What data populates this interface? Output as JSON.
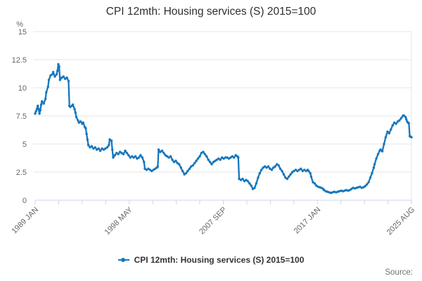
{
  "page": {
    "source_label": "Source:"
  },
  "colors": {
    "background": "#ffffff",
    "grid": "#e6e6e6",
    "axis": "#ccd6eb",
    "tick_label": "#666666",
    "title": "#2f2f2f",
    "legend_text": "#333333",
    "source_text": "#707070",
    "series_blue": "#1677bd"
  },
  "chart_data": {
    "type": "line",
    "title": "CPI 12mth: Housing services (S) 2015=100",
    "xlabel": "",
    "ylabel": "%",
    "ylim": [
      0,
      15
    ],
    "yticks": [
      0,
      2.5,
      5,
      7.5,
      10,
      12.5,
      15
    ],
    "xticks": [
      "1989 JAN",
      "1998 MAY",
      "2007 SEP",
      "2017 JAN",
      "2025 AUG"
    ],
    "xtick_months": [
      0,
      112,
      224,
      336,
      439
    ],
    "minor_xticks_per_interval": 3,
    "grid": "horizontal",
    "legend_position": "bottom",
    "x_unit": "months since 1989 JAN (monthly series, values estimated from plot)",
    "series": [
      {
        "name": "CPI 12mth: Housing services (S) 2015=100",
        "color": "#1677bd",
        "points": [
          [
            0,
            7.7
          ],
          [
            1,
            7.9
          ],
          [
            2,
            8.1
          ],
          [
            3,
            8.4
          ],
          [
            4,
            8.1
          ],
          [
            5,
            7.7
          ],
          [
            6,
            8.0
          ],
          [
            7,
            8.5
          ],
          [
            8,
            8.8
          ],
          [
            10,
            8.6
          ],
          [
            12,
            9.0
          ],
          [
            13,
            9.6
          ],
          [
            15,
            10.1
          ],
          [
            16,
            10.7
          ],
          [
            18,
            11.1
          ],
          [
            20,
            11.2
          ],
          [
            21,
            11.4
          ],
          [
            23,
            11.0
          ],
          [
            25,
            11.2
          ],
          [
            26,
            11.5
          ],
          [
            27,
            12.1
          ],
          [
            28,
            11.9
          ],
          [
            29,
            10.7
          ],
          [
            31,
            10.9
          ],
          [
            33,
            11.0
          ],
          [
            35,
            10.8
          ],
          [
            37,
            10.9
          ],
          [
            39,
            10.6
          ],
          [
            40,
            8.4
          ],
          [
            41,
            8.3
          ],
          [
            43,
            8.4
          ],
          [
            44,
            8.5
          ],
          [
            46,
            8.1
          ],
          [
            47,
            7.8
          ],
          [
            48,
            7.4
          ],
          [
            50,
            7.1
          ],
          [
            51,
            6.9
          ],
          [
            53,
            7.0
          ],
          [
            55,
            6.8
          ],
          [
            56,
            6.9
          ],
          [
            58,
            6.5
          ],
          [
            59,
            6.4
          ],
          [
            60,
            5.9
          ],
          [
            61,
            5.4
          ],
          [
            62,
            4.9
          ],
          [
            64,
            4.7
          ],
          [
            66,
            4.8
          ],
          [
            68,
            4.6
          ],
          [
            70,
            4.7
          ],
          [
            72,
            4.5
          ],
          [
            74,
            4.6
          ],
          [
            76,
            4.4
          ],
          [
            78,
            4.6
          ],
          [
            80,
            4.5
          ],
          [
            82,
            4.6
          ],
          [
            84,
            4.7
          ],
          [
            86,
            4.9
          ],
          [
            87,
            5.4
          ],
          [
            89,
            5.3
          ],
          [
            90,
            4.5
          ],
          [
            91,
            3.8
          ],
          [
            93,
            4.0
          ],
          [
            95,
            4.2
          ],
          [
            97,
            4.1
          ],
          [
            99,
            4.3
          ],
          [
            101,
            4.2
          ],
          [
            103,
            4.1
          ],
          [
            105,
            4.4
          ],
          [
            107,
            4.2
          ],
          [
            109,
            4.0
          ],
          [
            111,
            3.8
          ],
          [
            113,
            3.9
          ],
          [
            115,
            3.8
          ],
          [
            117,
            3.9
          ],
          [
            119,
            3.7
          ],
          [
            121,
            3.8
          ],
          [
            123,
            4.0
          ],
          [
            125,
            3.8
          ],
          [
            127,
            3.4
          ],
          [
            128,
            2.8
          ],
          [
            130,
            2.7
          ],
          [
            132,
            2.8
          ],
          [
            134,
            2.7
          ],
          [
            136,
            2.6
          ],
          [
            138,
            2.7
          ],
          [
            140,
            2.8
          ],
          [
            142,
            2.9
          ],
          [
            143,
            3.0
          ],
          [
            144,
            4.5
          ],
          [
            146,
            4.3
          ],
          [
            148,
            4.4
          ],
          [
            150,
            4.2
          ],
          [
            152,
            4.0
          ],
          [
            154,
            3.9
          ],
          [
            156,
            3.8
          ],
          [
            158,
            3.9
          ],
          [
            160,
            3.6
          ],
          [
            162,
            3.4
          ],
          [
            164,
            3.5
          ],
          [
            166,
            3.3
          ],
          [
            168,
            3.2
          ],
          [
            170,
            2.9
          ],
          [
            172,
            2.6
          ],
          [
            174,
            2.3
          ],
          [
            176,
            2.4
          ],
          [
            178,
            2.6
          ],
          [
            180,
            2.8
          ],
          [
            182,
            3.0
          ],
          [
            184,
            3.1
          ],
          [
            186,
            3.3
          ],
          [
            188,
            3.5
          ],
          [
            190,
            3.7
          ],
          [
            192,
            3.9
          ],
          [
            194,
            4.2
          ],
          [
            196,
            4.3
          ],
          [
            198,
            4.1
          ],
          [
            200,
            3.9
          ],
          [
            202,
            3.6
          ],
          [
            204,
            3.4
          ],
          [
            206,
            3.2
          ],
          [
            208,
            3.4
          ],
          [
            210,
            3.5
          ],
          [
            212,
            3.6
          ],
          [
            214,
            3.7
          ],
          [
            216,
            3.6
          ],
          [
            218,
            3.8
          ],
          [
            220,
            3.7
          ],
          [
            222,
            3.8
          ],
          [
            224,
            3.8
          ],
          [
            226,
            3.7
          ],
          [
            228,
            3.8
          ],
          [
            230,
            3.9
          ],
          [
            232,
            3.8
          ],
          [
            234,
            4.0
          ],
          [
            236,
            3.9
          ],
          [
            237,
            3.8
          ],
          [
            238,
            1.9
          ],
          [
            240,
            1.8
          ],
          [
            242,
            1.9
          ],
          [
            244,
            1.7
          ],
          [
            246,
            1.8
          ],
          [
            248,
            1.7
          ],
          [
            250,
            1.5
          ],
          [
            252,
            1.3
          ],
          [
            254,
            1.0
          ],
          [
            256,
            1.1
          ],
          [
            258,
            1.5
          ],
          [
            260,
            2.0
          ],
          [
            262,
            2.4
          ],
          [
            264,
            2.7
          ],
          [
            266,
            2.9
          ],
          [
            268,
            3.0
          ],
          [
            270,
            2.9
          ],
          [
            272,
            3.0
          ],
          [
            274,
            2.8
          ],
          [
            276,
            2.7
          ],
          [
            278,
            2.9
          ],
          [
            280,
            3.0
          ],
          [
            282,
            3.2
          ],
          [
            284,
            3.1
          ],
          [
            286,
            2.8
          ],
          [
            288,
            2.6
          ],
          [
            290,
            2.3
          ],
          [
            292,
            2.0
          ],
          [
            294,
            1.9
          ],
          [
            296,
            2.1
          ],
          [
            298,
            2.3
          ],
          [
            300,
            2.5
          ],
          [
            302,
            2.6
          ],
          [
            304,
            2.7
          ],
          [
            306,
            2.6
          ],
          [
            308,
            2.7
          ],
          [
            310,
            2.8
          ],
          [
            312,
            2.6
          ],
          [
            314,
            2.7
          ],
          [
            316,
            2.6
          ],
          [
            318,
            2.7
          ],
          [
            319,
            2.6
          ],
          [
            321,
            2.4
          ],
          [
            322,
            2.1
          ],
          [
            324,
            1.6
          ],
          [
            326,
            1.5
          ],
          [
            328,
            1.3
          ],
          [
            330,
            1.2
          ],
          [
            332,
            1.15
          ],
          [
            334,
            1.1
          ],
          [
            336,
            1.0
          ],
          [
            337,
            0.9
          ],
          [
            339,
            0.8
          ],
          [
            341,
            0.75
          ],
          [
            343,
            0.7
          ],
          [
            345,
            0.65
          ],
          [
            347,
            0.7
          ],
          [
            349,
            0.75
          ],
          [
            351,
            0.7
          ],
          [
            353,
            0.75
          ],
          [
            355,
            0.8
          ],
          [
            357,
            0.85
          ],
          [
            359,
            0.8
          ],
          [
            361,
            0.85
          ],
          [
            363,
            0.9
          ],
          [
            365,
            0.85
          ],
          [
            367,
            0.9
          ],
          [
            369,
            1.0
          ],
          [
            371,
            1.1
          ],
          [
            373,
            1.05
          ],
          [
            375,
            1.1
          ],
          [
            377,
            1.15
          ],
          [
            379,
            1.2
          ],
          [
            381,
            1.1
          ],
          [
            383,
            1.15
          ],
          [
            385,
            1.25
          ],
          [
            387,
            1.4
          ],
          [
            389,
            1.6
          ],
          [
            391,
            2.0
          ],
          [
            393,
            2.4
          ],
          [
            395,
            2.9
          ],
          [
            396,
            3.2
          ],
          [
            398,
            3.7
          ],
          [
            400,
            4.1
          ],
          [
            402,
            4.4
          ],
          [
            403,
            4.5
          ],
          [
            405,
            4.35
          ],
          [
            407,
            5.0
          ],
          [
            409,
            5.6
          ],
          [
            411,
            6.1
          ],
          [
            413,
            5.95
          ],
          [
            415,
            6.3
          ],
          [
            417,
            6.65
          ],
          [
            419,
            6.9
          ],
          [
            421,
            6.8
          ],
          [
            423,
            7.0
          ],
          [
            425,
            7.1
          ],
          [
            427,
            7.3
          ],
          [
            429,
            7.5
          ],
          [
            430,
            7.55
          ],
          [
            432,
            7.4
          ],
          [
            433,
            7.2
          ],
          [
            434,
            7.0
          ],
          [
            435,
            6.9
          ],
          [
            436,
            6.85
          ],
          [
            437,
            5.7
          ],
          [
            438,
            5.65
          ],
          [
            439,
            5.6
          ]
        ]
      }
    ]
  }
}
